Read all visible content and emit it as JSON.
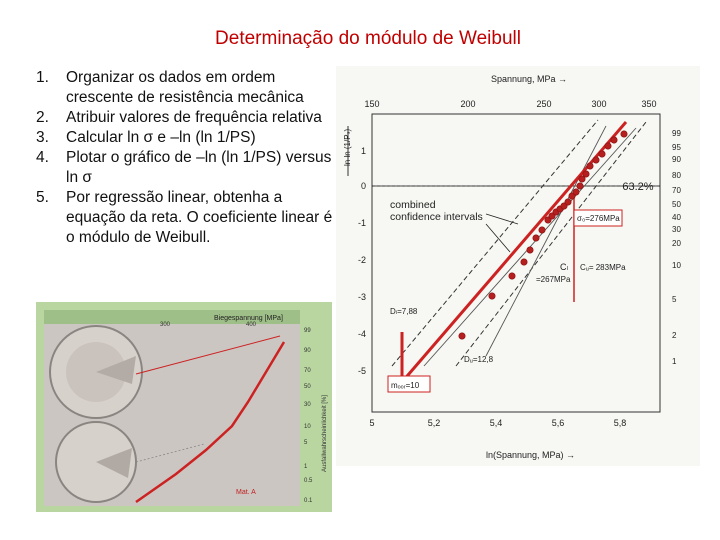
{
  "slide": {
    "title": "Determinação do módulo de Weibull",
    "steps": [
      {
        "n": "1.",
        "text": "Organizar os dados em ordem crescente de resistência mecânica"
      },
      {
        "n": "2.",
        "text": "Atribuir valores de frequência relativa"
      },
      {
        "n": "3.",
        "text": "Calcular ln σ e –ln (ln 1/PS)"
      },
      {
        "n": "4.",
        "text": "Plotar o gráfico de –ln (ln 1/PS) versus ln σ"
      },
      {
        "n": "5.",
        "text": "Por regressão linear, obtenha a equação da reta. O coeficiente linear é o módulo de Weibull."
      }
    ]
  },
  "weibull_plot": {
    "top_axis_label": "Spannung, MPa →",
    "top_ticks": [
      "150",
      "200",
      "250",
      "300",
      "350"
    ],
    "bottom_axis_label": "ln(Spannung, MPa) →",
    "bottom_ticks": [
      "5",
      "5,2",
      "5,4",
      "5,6",
      "5,8"
    ],
    "left_ticks": [
      "1",
      "0",
      "-1",
      "-2",
      "-3",
      "-4",
      "-5"
    ],
    "right_ticks": [
      "99",
      "95",
      "90",
      "80",
      "70",
      "50",
      "40",
      "30",
      "20",
      "10",
      "5",
      "2",
      "1"
    ],
    "pct_label": "63.2%",
    "legend_line1": "combined",
    "legend_line2": "confidence intervals",
    "annot_sigma0": "σ₀=276MPa",
    "annot_cl": "Cₗ",
    "annot_cu": "Cᵤ= 283MPa",
    "annot_267": "=267MPa",
    "annot_dl": "Dₗ=7,88",
    "annot_du": "Dᵤ=12,8",
    "annot_m": "mₒₒᵣ=10",
    "accent_color": "#cc2222"
  },
  "fracture_plot": {
    "top_label": "Biegespannung [MPa]",
    "top_ticks": [
      "300",
      "400"
    ],
    "right_axis_label": "Ausfallwahrscheinlichkeit [%]",
    "right_ticks": [
      "99",
      "90",
      "70",
      "50",
      "30",
      "10",
      "5",
      "1",
      "0.5",
      "0.1"
    ],
    "caption": "Mat. A"
  }
}
